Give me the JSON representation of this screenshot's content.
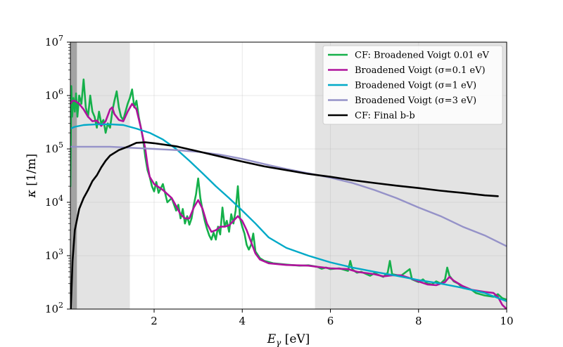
{
  "chart_data": {
    "type": "line",
    "xlabel_main": "E",
    "xlabel_sub": "γ",
    "xlabel_unit": " [eV]",
    "ylabel_main": "κ",
    "ylabel_unit": " [1/m]",
    "xlim": [
      0.1,
      10
    ],
    "ylim": [
      100,
      10000000
    ],
    "yscale": "log",
    "grid": true,
    "legend_position": "upper-right",
    "x_ticks": [
      {
        "value": 2,
        "label": "2"
      },
      {
        "value": 4,
        "label": "4"
      },
      {
        "value": 6,
        "label": "6"
      },
      {
        "value": 8,
        "label": "8"
      },
      {
        "value": 10,
        "label": "10"
      }
    ],
    "y_ticks": [
      {
        "value": 100,
        "base": "10",
        "exp": "2"
      },
      {
        "value": 1000,
        "base": "10",
        "exp": "3"
      },
      {
        "value": 10000,
        "base": "10",
        "exp": "4"
      },
      {
        "value": 100000,
        "base": "10",
        "exp": "5"
      },
      {
        "value": 1000000,
        "base": "10",
        "exp": "6"
      },
      {
        "value": 10000000,
        "base": "10",
        "exp": "7"
      }
    ],
    "shaded_regions": [
      {
        "x": [
          0.1,
          0.25
        ],
        "color": "#a3a3a3"
      },
      {
        "x": [
          0.25,
          1.45
        ],
        "color": "#e3e3e3"
      },
      {
        "x": [
          5.65,
          10
        ],
        "color": "#e3e3e3"
      }
    ],
    "series": [
      {
        "name": "CF: Broadened Voigt 0.01 eV",
        "color": "#15b04a",
        "width": 2.6,
        "points": [
          [
            0.1,
            20000
          ],
          [
            0.12,
            1500000
          ],
          [
            0.14,
            400000
          ],
          [
            0.17,
            900000
          ],
          [
            0.2,
            500000
          ],
          [
            0.23,
            1100000
          ],
          [
            0.26,
            400000
          ],
          [
            0.3,
            1000000
          ],
          [
            0.35,
            700000
          ],
          [
            0.4,
            2000000
          ],
          [
            0.45,
            600000
          ],
          [
            0.5,
            400000
          ],
          [
            0.55,
            1000000
          ],
          [
            0.6,
            500000
          ],
          [
            0.65,
            400000
          ],
          [
            0.7,
            250000
          ],
          [
            0.75,
            500000
          ],
          [
            0.8,
            300000
          ],
          [
            0.85,
            350000
          ],
          [
            0.9,
            200000
          ],
          [
            0.95,
            300000
          ],
          [
            1.0,
            250000
          ],
          [
            1.05,
            500000
          ],
          [
            1.1,
            800000
          ],
          [
            1.15,
            1200000
          ],
          [
            1.2,
            600000
          ],
          [
            1.25,
            400000
          ],
          [
            1.3,
            350000
          ],
          [
            1.35,
            500000
          ],
          [
            1.4,
            700000
          ],
          [
            1.45,
            900000
          ],
          [
            1.5,
            1300000
          ],
          [
            1.55,
            600000
          ],
          [
            1.6,
            800000
          ],
          [
            1.65,
            400000
          ],
          [
            1.7,
            250000
          ],
          [
            1.75,
            150000
          ],
          [
            1.8,
            70000
          ],
          [
            1.85,
            40000
          ],
          [
            1.9,
            30000
          ],
          [
            1.95,
            20000
          ],
          [
            2.0,
            16000
          ],
          [
            2.05,
            24000
          ],
          [
            2.1,
            15000
          ],
          [
            2.2,
            22000
          ],
          [
            2.3,
            10000
          ],
          [
            2.4,
            12000
          ],
          [
            2.5,
            7000
          ],
          [
            2.55,
            9000
          ],
          [
            2.6,
            5000
          ],
          [
            2.65,
            7500
          ],
          [
            2.7,
            4000
          ],
          [
            2.75,
            5500
          ],
          [
            2.8,
            3800
          ],
          [
            2.85,
            5000
          ],
          [
            2.9,
            9000
          ],
          [
            2.95,
            14000
          ],
          [
            3.0,
            28000
          ],
          [
            3.05,
            12000
          ],
          [
            3.1,
            7000
          ],
          [
            3.15,
            4500
          ],
          [
            3.2,
            3200
          ],
          [
            3.25,
            2400
          ],
          [
            3.3,
            2000
          ],
          [
            3.35,
            2700
          ],
          [
            3.4,
            2000
          ],
          [
            3.45,
            3500
          ],
          [
            3.5,
            2500
          ],
          [
            3.55,
            8000
          ],
          [
            3.6,
            3500
          ],
          [
            3.65,
            4500
          ],
          [
            3.7,
            2800
          ],
          [
            3.75,
            6000
          ],
          [
            3.8,
            4000
          ],
          [
            3.85,
            7000
          ],
          [
            3.9,
            20000
          ],
          [
            3.95,
            5000
          ],
          [
            4.0,
            3500
          ],
          [
            4.05,
            2600
          ],
          [
            4.1,
            1600
          ],
          [
            4.15,
            1300
          ],
          [
            4.2,
            1600
          ],
          [
            4.25,
            2600
          ],
          [
            4.3,
            1200
          ],
          [
            4.4,
            900
          ],
          [
            4.5,
            800
          ],
          [
            4.7,
            720
          ],
          [
            5.0,
            680
          ],
          [
            5.3,
            650
          ],
          [
            5.5,
            660
          ],
          [
            5.6,
            640
          ],
          [
            5.7,
            620
          ],
          [
            5.8,
            570
          ],
          [
            5.9,
            600
          ],
          [
            6.0,
            560
          ],
          [
            6.2,
            580
          ],
          [
            6.4,
            520
          ],
          [
            6.45,
            800
          ],
          [
            6.5,
            550
          ],
          [
            6.6,
            480
          ],
          [
            6.7,
            500
          ],
          [
            6.9,
            420
          ],
          [
            7.0,
            470
          ],
          [
            7.2,
            400
          ],
          [
            7.3,
            480
          ],
          [
            7.35,
            800
          ],
          [
            7.4,
            450
          ],
          [
            7.6,
            420
          ],
          [
            7.8,
            560
          ],
          [
            7.85,
            360
          ],
          [
            8.0,
            320
          ],
          [
            8.1,
            360
          ],
          [
            8.2,
            300
          ],
          [
            8.3,
            290
          ],
          [
            8.4,
            330
          ],
          [
            8.5,
            300
          ],
          [
            8.6,
            360
          ],
          [
            8.65,
            600
          ],
          [
            8.7,
            420
          ],
          [
            8.8,
            330
          ],
          [
            8.9,
            300
          ],
          [
            9.0,
            250
          ],
          [
            9.2,
            230
          ],
          [
            9.3,
            200
          ],
          [
            9.5,
            180
          ],
          [
            9.7,
            170
          ],
          [
            9.8,
            190
          ],
          [
            9.9,
            160
          ],
          [
            10.0,
            150
          ]
        ]
      },
      {
        "name": "Broadened Voigt (σ=0.1 eV)",
        "color": "#b0129c",
        "width": 2.6,
        "points": [
          [
            0.1,
            700000
          ],
          [
            0.15,
            800000
          ],
          [
            0.2,
            800000
          ],
          [
            0.3,
            700000
          ],
          [
            0.4,
            550000
          ],
          [
            0.5,
            400000
          ],
          [
            0.6,
            330000
          ],
          [
            0.7,
            340000
          ],
          [
            0.8,
            270000
          ],
          [
            0.9,
            330000
          ],
          [
            1.0,
            550000
          ],
          [
            1.05,
            600000
          ],
          [
            1.1,
            450000
          ],
          [
            1.2,
            350000
          ],
          [
            1.3,
            330000
          ],
          [
            1.4,
            500000
          ],
          [
            1.5,
            700000
          ],
          [
            1.6,
            550000
          ],
          [
            1.7,
            250000
          ],
          [
            1.8,
            100000
          ],
          [
            1.85,
            50000
          ],
          [
            1.9,
            30000
          ],
          [
            2.0,
            22000
          ],
          [
            2.2,
            17000
          ],
          [
            2.4,
            12000
          ],
          [
            2.6,
            6000
          ],
          [
            2.7,
            5000
          ],
          [
            2.8,
            5000
          ],
          [
            2.9,
            8000
          ],
          [
            3.0,
            11000
          ],
          [
            3.1,
            7500
          ],
          [
            3.2,
            4000
          ],
          [
            3.3,
            2800
          ],
          [
            3.4,
            3000
          ],
          [
            3.5,
            3500
          ],
          [
            3.6,
            3500
          ],
          [
            3.7,
            3700
          ],
          [
            3.8,
            4500
          ],
          [
            3.9,
            5500
          ],
          [
            4.0,
            4500
          ],
          [
            4.1,
            3000
          ],
          [
            4.2,
            1800
          ],
          [
            4.3,
            1100
          ],
          [
            4.4,
            850
          ],
          [
            4.6,
            720
          ],
          [
            5.0,
            670
          ],
          [
            5.5,
            650
          ],
          [
            5.7,
            620
          ],
          [
            6.0,
            580
          ],
          [
            6.4,
            560
          ],
          [
            6.6,
            500
          ],
          [
            7.0,
            450
          ],
          [
            7.2,
            410
          ],
          [
            7.4,
            430
          ],
          [
            7.6,
            430
          ],
          [
            7.8,
            380
          ],
          [
            8.0,
            330
          ],
          [
            8.2,
            290
          ],
          [
            8.4,
            280
          ],
          [
            8.6,
            320
          ],
          [
            8.7,
            400
          ],
          [
            8.8,
            340
          ],
          [
            9.0,
            270
          ],
          [
            9.2,
            230
          ],
          [
            9.5,
            210
          ],
          [
            9.7,
            200
          ],
          [
            9.8,
            170
          ],
          [
            9.9,
            120
          ],
          [
            10.0,
            100
          ]
        ]
      },
      {
        "name": "Broadened Voigt (σ=1 eV)",
        "color": "#00a9c7",
        "width": 2.4,
        "points": [
          [
            0.1,
            240000
          ],
          [
            0.2,
            260000
          ],
          [
            0.4,
            280000
          ],
          [
            0.7,
            290000
          ],
          [
            1.0,
            290000
          ],
          [
            1.3,
            280000
          ],
          [
            1.6,
            240000
          ],
          [
            1.9,
            200000
          ],
          [
            2.2,
            150000
          ],
          [
            2.5,
            100000
          ],
          [
            2.8,
            60000
          ],
          [
            3.1,
            35000
          ],
          [
            3.4,
            20000
          ],
          [
            3.7,
            12000
          ],
          [
            4.0,
            7000
          ],
          [
            4.3,
            4000
          ],
          [
            4.6,
            2200
          ],
          [
            5.0,
            1400
          ],
          [
            5.5,
            1000
          ],
          [
            6.0,
            750
          ],
          [
            6.5,
            600
          ],
          [
            7.0,
            500
          ],
          [
            7.5,
            420
          ],
          [
            8.0,
            350
          ],
          [
            8.5,
            300
          ],
          [
            9.0,
            250
          ],
          [
            9.5,
            200
          ],
          [
            10.0,
            140
          ]
        ]
      },
      {
        "name": "Broadened Voigt (σ=3 eV)",
        "color": "#9592c8",
        "width": 2.4,
        "points": [
          [
            0.1,
            110000
          ],
          [
            0.5,
            110000
          ],
          [
            1.0,
            110000
          ],
          [
            1.5,
            105000
          ],
          [
            2.0,
            100000
          ],
          [
            2.5,
            95000
          ],
          [
            3.0,
            88000
          ],
          [
            3.5,
            78000
          ],
          [
            4.0,
            65000
          ],
          [
            4.5,
            52000
          ],
          [
            5.0,
            42000
          ],
          [
            5.5,
            35000
          ],
          [
            6.0,
            29000
          ],
          [
            6.5,
            23000
          ],
          [
            7.0,
            17000
          ],
          [
            7.5,
            12000
          ],
          [
            8.0,
            8000
          ],
          [
            8.5,
            5500
          ],
          [
            9.0,
            3500
          ],
          [
            9.5,
            2400
          ],
          [
            10.0,
            1500
          ]
        ]
      },
      {
        "name": "CF: Final b-b",
        "color": "#000000",
        "width": 2.6,
        "points": [
          [
            0.1,
            60
          ],
          [
            0.15,
            800
          ],
          [
            0.2,
            3000
          ],
          [
            0.3,
            7500
          ],
          [
            0.4,
            12000
          ],
          [
            0.5,
            17000
          ],
          [
            0.6,
            25000
          ],
          [
            0.7,
            32000
          ],
          [
            0.8,
            45000
          ],
          [
            0.9,
            60000
          ],
          [
            1.0,
            75000
          ],
          [
            1.2,
            95000
          ],
          [
            1.4,
            110000
          ],
          [
            1.6,
            130000
          ],
          [
            1.8,
            133000
          ],
          [
            2.0,
            128000
          ],
          [
            2.5,
            112000
          ],
          [
            3.0,
            90000
          ],
          [
            3.5,
            72000
          ],
          [
            4.0,
            58000
          ],
          [
            4.5,
            47000
          ],
          [
            5.0,
            40000
          ],
          [
            5.5,
            34000
          ],
          [
            6.0,
            30000
          ],
          [
            6.5,
            26000
          ],
          [
            7.0,
            23000
          ],
          [
            7.5,
            20500
          ],
          [
            8.0,
            18500
          ],
          [
            8.5,
            16500
          ],
          [
            9.0,
            15000
          ],
          [
            9.5,
            13500
          ],
          [
            9.8,
            13000
          ]
        ]
      }
    ]
  }
}
